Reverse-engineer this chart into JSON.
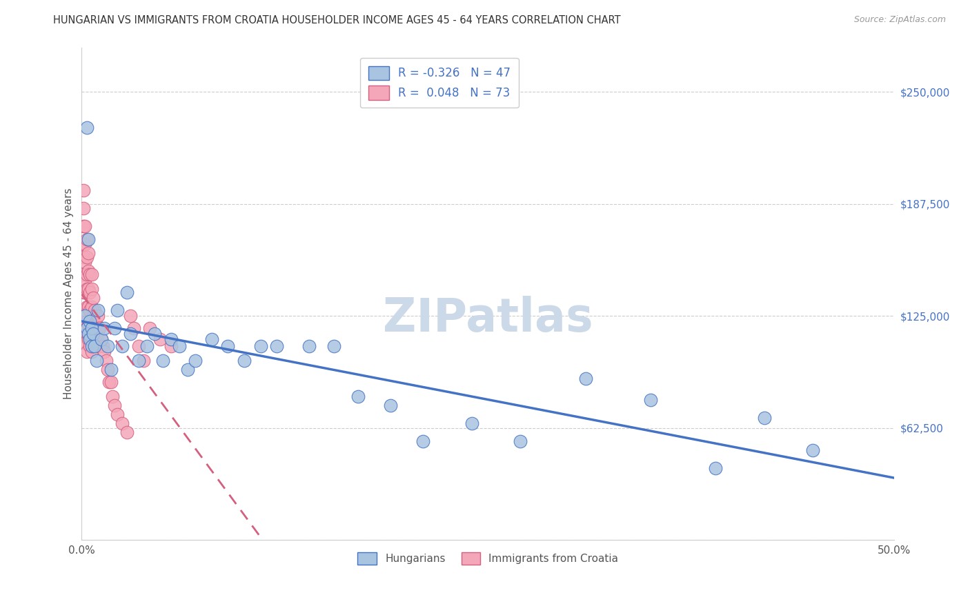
{
  "title": "HUNGARIAN VS IMMIGRANTS FROM CROATIA HOUSEHOLDER INCOME AGES 45 - 64 YEARS CORRELATION CHART",
  "source": "Source: ZipAtlas.com",
  "ylabel": "Householder Income Ages 45 - 64 years",
  "xlim": [
    0.0,
    0.5
  ],
  "ylim": [
    0,
    275000
  ],
  "yticks": [
    0,
    62500,
    125000,
    187500,
    250000
  ],
  "ytick_labels": [
    "",
    "$62,500",
    "$125,000",
    "$187,500",
    "$250,000"
  ],
  "xticks": [
    0.0,
    0.1,
    0.2,
    0.3,
    0.4,
    0.5
  ],
  "xtick_labels": [
    "0.0%",
    "",
    "",
    "",
    "",
    "50.0%"
  ],
  "legend_r_hungarian": "-0.326",
  "legend_n_hungarian": "47",
  "legend_r_croatia": "0.048",
  "legend_n_croatia": "73",
  "hungarian_color": "#a8c4e0",
  "croatia_color": "#f4a7b9",
  "hungarian_line_color": "#4472c4",
  "croatia_line_color": "#d46080",
  "watermark": "ZIPatlas",
  "hungarian_x": [
    0.002,
    0.003,
    0.003,
    0.004,
    0.004,
    0.005,
    0.005,
    0.006,
    0.006,
    0.007,
    0.008,
    0.009,
    0.01,
    0.012,
    0.014,
    0.016,
    0.018,
    0.02,
    0.022,
    0.025,
    0.028,
    0.03,
    0.035,
    0.04,
    0.045,
    0.05,
    0.055,
    0.06,
    0.065,
    0.07,
    0.08,
    0.09,
    0.1,
    0.11,
    0.12,
    0.14,
    0.155,
    0.17,
    0.19,
    0.21,
    0.24,
    0.27,
    0.31,
    0.35,
    0.39,
    0.42,
    0.45
  ],
  "hungarian_y": [
    125000,
    230000,
    118000,
    115000,
    168000,
    122000,
    112000,
    118000,
    108000,
    115000,
    108000,
    100000,
    128000,
    112000,
    118000,
    108000,
    95000,
    118000,
    128000,
    108000,
    138000,
    115000,
    100000,
    108000,
    115000,
    100000,
    112000,
    108000,
    95000,
    100000,
    112000,
    108000,
    100000,
    108000,
    108000,
    108000,
    108000,
    80000,
    75000,
    55000,
    65000,
    55000,
    90000,
    78000,
    40000,
    68000,
    50000
  ],
  "croatia_x": [
    0.001,
    0.001,
    0.001,
    0.001,
    0.001,
    0.001,
    0.001,
    0.002,
    0.002,
    0.002,
    0.002,
    0.002,
    0.002,
    0.002,
    0.002,
    0.003,
    0.003,
    0.003,
    0.003,
    0.003,
    0.003,
    0.003,
    0.003,
    0.004,
    0.004,
    0.004,
    0.004,
    0.004,
    0.004,
    0.005,
    0.005,
    0.005,
    0.005,
    0.005,
    0.006,
    0.006,
    0.006,
    0.006,
    0.006,
    0.006,
    0.007,
    0.007,
    0.007,
    0.007,
    0.008,
    0.008,
    0.008,
    0.009,
    0.009,
    0.01,
    0.01,
    0.01,
    0.011,
    0.011,
    0.012,
    0.013,
    0.014,
    0.015,
    0.016,
    0.017,
    0.018,
    0.019,
    0.02,
    0.022,
    0.025,
    0.028,
    0.03,
    0.032,
    0.035,
    0.038,
    0.042,
    0.048,
    0.055
  ],
  "croatia_y": [
    195000,
    185000,
    175000,
    165000,
    158000,
    148000,
    138000,
    175000,
    165000,
    155000,
    145000,
    138000,
    128000,
    120000,
    110000,
    168000,
    158000,
    148000,
    140000,
    130000,
    122000,
    115000,
    105000,
    160000,
    150000,
    140000,
    130000,
    120000,
    112000,
    148000,
    138000,
    128000,
    118000,
    108000,
    148000,
    140000,
    130000,
    122000,
    112000,
    105000,
    135000,
    125000,
    118000,
    108000,
    128000,
    120000,
    110000,
    120000,
    112000,
    125000,
    118000,
    108000,
    118000,
    108000,
    112000,
    108000,
    105000,
    100000,
    95000,
    88000,
    88000,
    80000,
    75000,
    70000,
    65000,
    60000,
    125000,
    118000,
    108000,
    100000,
    118000,
    112000,
    108000
  ],
  "bg_color": "#ffffff",
  "title_color": "#333333",
  "axis_color": "#cccccc",
  "title_fontsize": 10.5,
  "source_fontsize": 9,
  "watermark_color": "#ccd9e8"
}
